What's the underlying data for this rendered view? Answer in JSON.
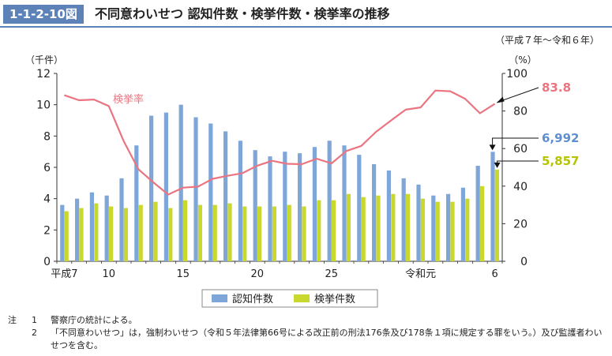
{
  "header": {
    "figure_number": "1-1-2-10図",
    "title": "不同意わいせつ 認知件数・検挙件数・検挙率の推移"
  },
  "period_note": "（平成７年～令和６年）",
  "chart_data": {
    "type": "bar",
    "categories": [
      "平成7",
      "8",
      "9",
      "10",
      "11",
      "12",
      "13",
      "14",
      "15",
      "16",
      "17",
      "18",
      "19",
      "20",
      "21",
      "22",
      "23",
      "24",
      "25",
      "26",
      "27",
      "28",
      "29",
      "30",
      "令和元",
      "2",
      "3",
      "4",
      "5",
      "6"
    ],
    "tick_labels": [
      "平成7",
      "10",
      "15",
      "20",
      "25",
      "令和元",
      "6"
    ],
    "tick_indices": [
      0,
      3,
      8,
      13,
      18,
      24,
      29
    ],
    "left_axis": {
      "unit_label": "（千件）",
      "ylim": [
        0,
        12
      ],
      "ticks": [
        0,
        2,
        4,
        6,
        8,
        10,
        12
      ]
    },
    "right_axis": {
      "unit_label": "（%）",
      "ylim": [
        0,
        100
      ],
      "ticks": [
        0,
        20,
        40,
        60,
        80,
        100
      ]
    },
    "series": [
      {
        "name": "認知件数",
        "kind": "bar",
        "axis": "left",
        "color": "#7ea6d8",
        "values": [
          3.6,
          4.0,
          4.4,
          4.2,
          5.3,
          7.4,
          9.3,
          9.5,
          10.0,
          9.2,
          8.8,
          8.3,
          7.7,
          7.1,
          6.7,
          7.0,
          6.9,
          7.3,
          7.7,
          7.4,
          6.8,
          6.2,
          5.8,
          5.3,
          4.9,
          4.2,
          4.3,
          4.7,
          6.1,
          6.992
        ]
      },
      {
        "name": "検挙件数",
        "kind": "bar",
        "axis": "left",
        "color": "#c8d82e",
        "values": [
          3.2,
          3.4,
          3.7,
          3.5,
          3.4,
          3.6,
          3.8,
          3.4,
          3.9,
          3.6,
          3.6,
          3.7,
          3.5,
          3.5,
          3.5,
          3.6,
          3.5,
          3.9,
          3.9,
          4.3,
          4.1,
          4.2,
          4.3,
          4.3,
          4.0,
          3.8,
          3.8,
          4.0,
          4.8,
          5.857
        ]
      },
      {
        "name": "検挙率",
        "kind": "line",
        "axis": "right",
        "color": "#ea7580",
        "values": [
          88.4,
          85.7,
          86.1,
          82.6,
          64.0,
          48.9,
          42.0,
          35.5,
          39.2,
          39.7,
          43.9,
          45.5,
          46.9,
          50.9,
          53.5,
          51.9,
          51.7,
          54.6,
          52.1,
          58.7,
          61.4,
          68.9,
          74.9,
          80.7,
          81.9,
          90.9,
          90.5,
          86.5,
          78.8,
          83.8
        ]
      }
    ],
    "line_label": "検挙率",
    "callouts": [
      {
        "text": "83.8",
        "color": "#ea7580"
      },
      {
        "text": "6,992",
        "color": "#5e8fcf"
      },
      {
        "text": "5,857",
        "color": "#b5c400"
      }
    ],
    "legend": {
      "position": "bottom-center"
    },
    "grid": false
  },
  "notes": {
    "lead": "注",
    "items": [
      {
        "num": "1",
        "text": "警察庁の統計による。"
      },
      {
        "num": "2",
        "text": "「不同意わいせつ」は，強制わいせつ（令和５年法律第66号による改正前の刑法176条及び178条１項に規定する罪をいう。）及び監護者わいせつを含む。"
      }
    ]
  }
}
